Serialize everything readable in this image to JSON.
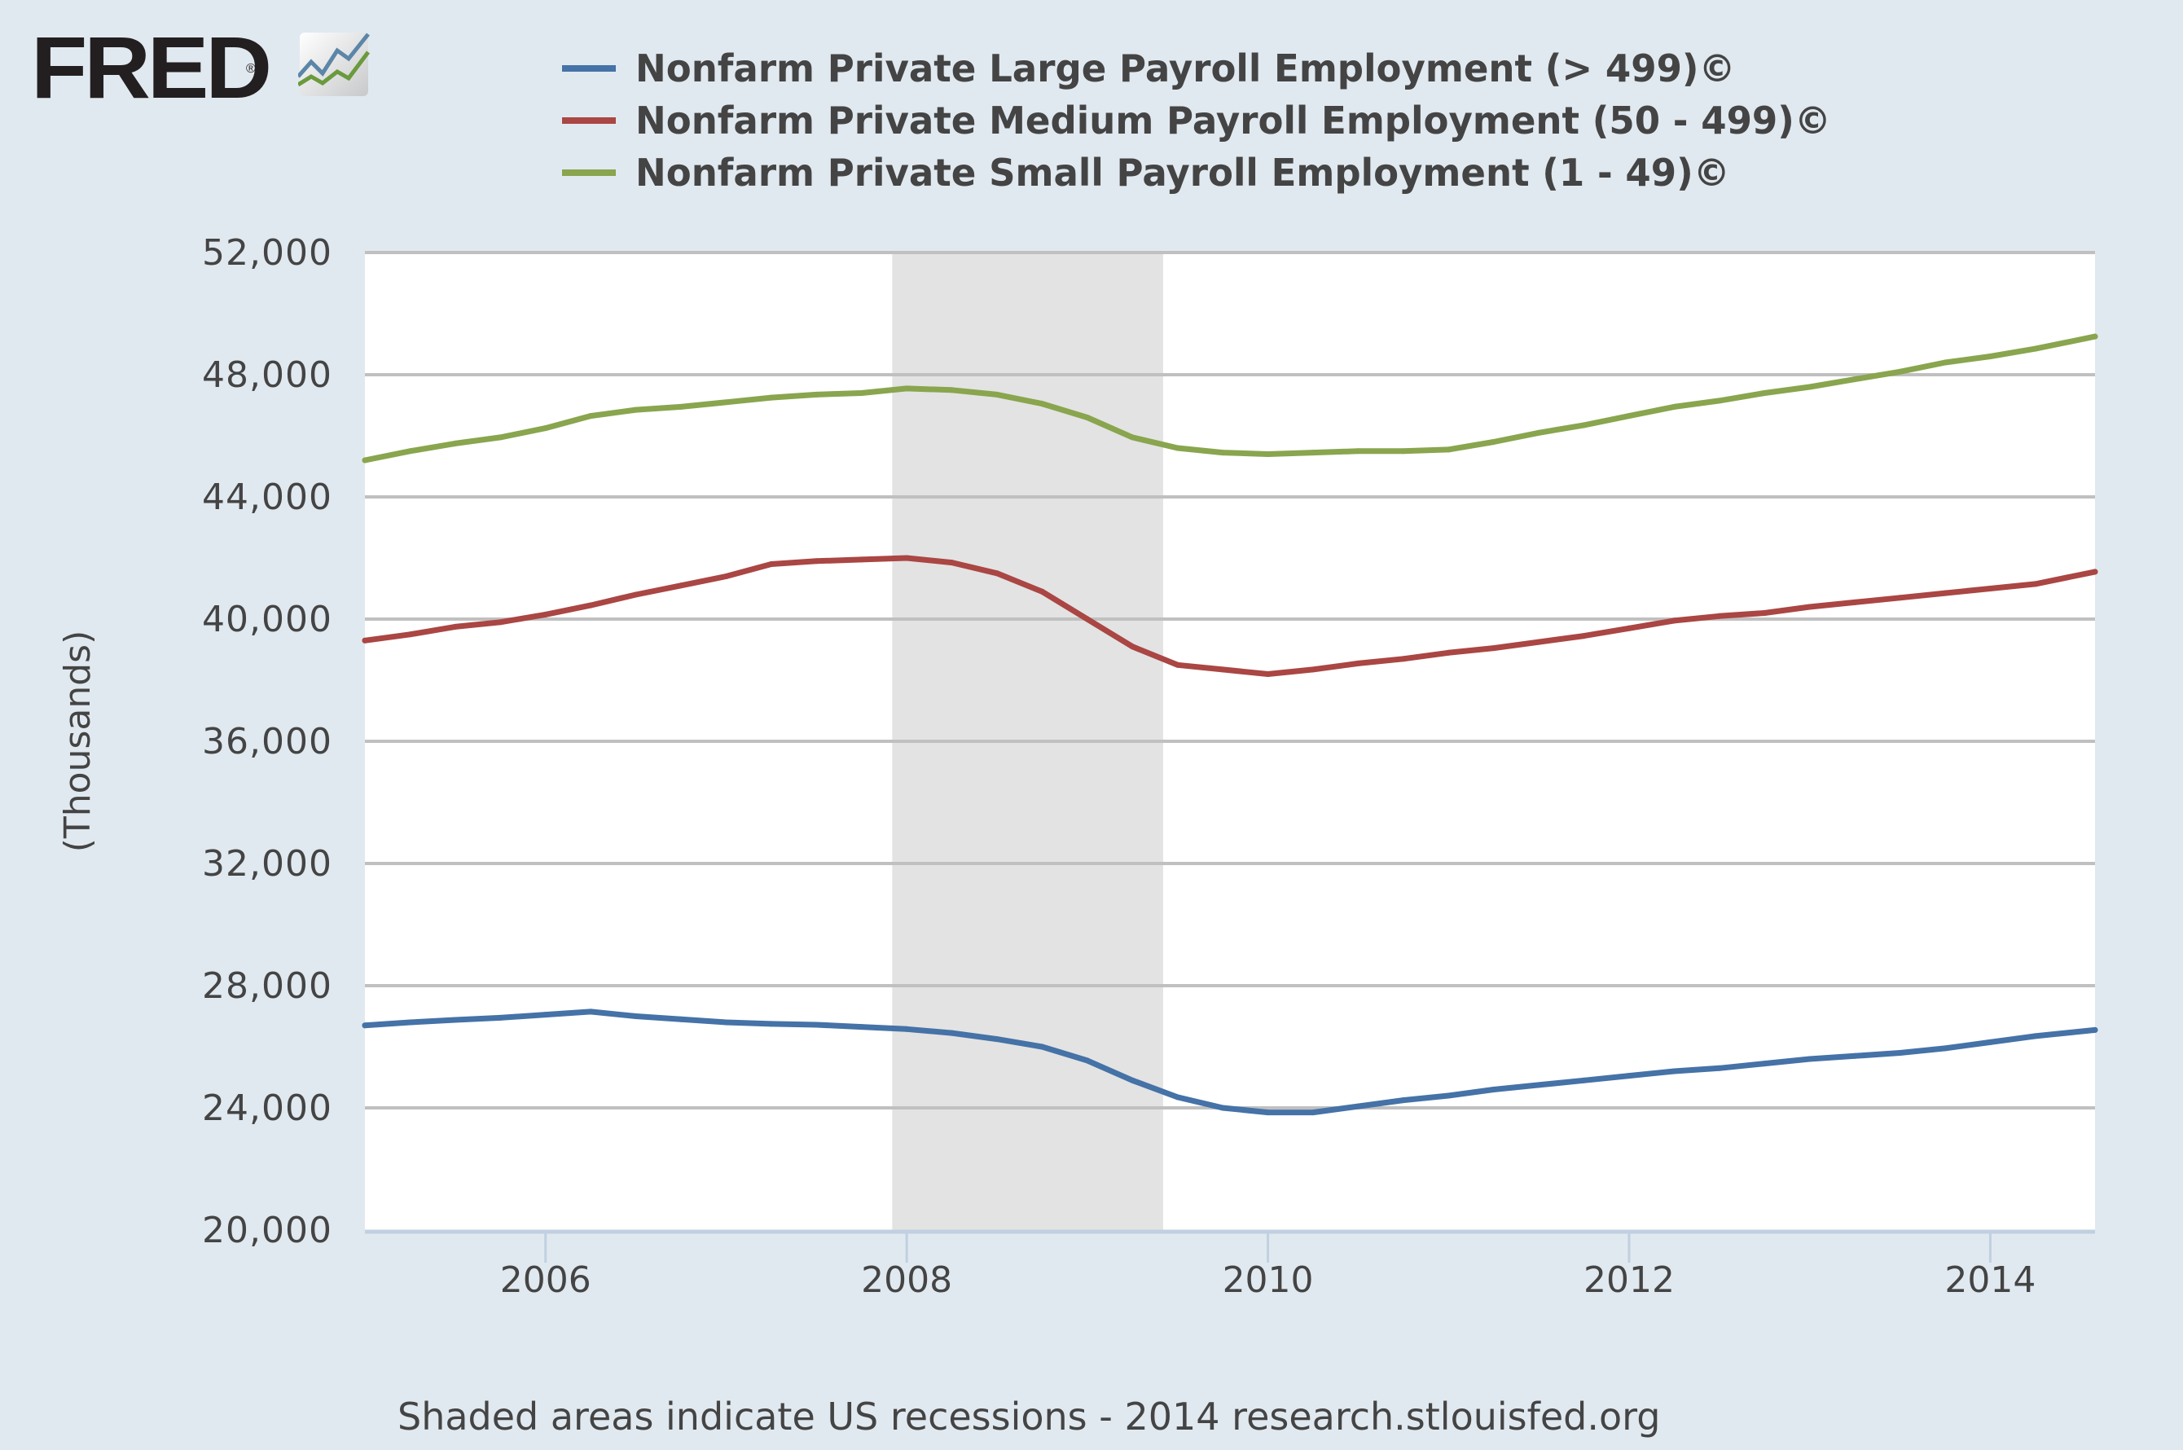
{
  "logo": {
    "text": "FRED",
    "registered": "®",
    "icon": "chart-line-icon"
  },
  "chart_data": {
    "type": "line",
    "title": "",
    "xlabel": "",
    "ylabel": "(Thousands)",
    "ylim": [
      20000,
      52000
    ],
    "xlim": [
      2005.0,
      2014.58
    ],
    "y_ticks": [
      20000,
      24000,
      28000,
      32000,
      36000,
      40000,
      44000,
      48000,
      52000
    ],
    "y_tick_labels": [
      "20,000",
      "24,000",
      "28,000",
      "32,000",
      "36,000",
      "40,000",
      "44,000",
      "48,000",
      "52,000"
    ],
    "x_ticks": [
      2006,
      2008,
      2010,
      2012,
      2014
    ],
    "x_tick_labels": [
      "2006",
      "2008",
      "2010",
      "2012",
      "2014"
    ],
    "grid": "horizontal",
    "legend_position": "top",
    "recessions": [
      {
        "start": 2007.92,
        "end": 2009.42,
        "label": "US recession"
      }
    ],
    "x": [
      2005.0,
      2005.25,
      2005.5,
      2005.75,
      2006.0,
      2006.25,
      2006.5,
      2006.75,
      2007.0,
      2007.25,
      2007.5,
      2007.75,
      2008.0,
      2008.25,
      2008.5,
      2008.75,
      2009.0,
      2009.25,
      2009.5,
      2009.75,
      2010.0,
      2010.25,
      2010.5,
      2010.75,
      2011.0,
      2011.25,
      2011.5,
      2011.75,
      2012.0,
      2012.25,
      2012.5,
      2012.75,
      2013.0,
      2013.25,
      2013.5,
      2013.75,
      2014.0,
      2014.25,
      2014.58
    ],
    "series": [
      {
        "name": "Nonfarm Private Large Payroll Employment (> 499)©",
        "color": "#4572a7",
        "values": [
          26700,
          26800,
          26880,
          26950,
          27050,
          27150,
          27000,
          26900,
          26800,
          26750,
          26720,
          26650,
          26580,
          26450,
          26250,
          26000,
          25550,
          24900,
          24350,
          24000,
          23850,
          23850,
          24050,
          24250,
          24400,
          24600,
          24750,
          24900,
          25050,
          25200,
          25300,
          25450,
          25600,
          25700,
          25800,
          25950,
          26150,
          26350,
          26550
        ]
      },
      {
        "name": "Nonfarm Private Medium Payroll Employment (50 - 499)©",
        "color": "#aa4643",
        "values": [
          39300,
          39500,
          39750,
          39900,
          40150,
          40450,
          40800,
          41100,
          41400,
          41800,
          41900,
          41950,
          42000,
          41850,
          41500,
          40900,
          40000,
          39100,
          38500,
          38350,
          38200,
          38350,
          38550,
          38700,
          38900,
          39050,
          39250,
          39450,
          39700,
          39950,
          40100,
          40200,
          40400,
          40550,
          40700,
          40850,
          41000,
          41150,
          41550
        ]
      },
      {
        "name": "Nonfarm Private Small Payroll Employment (1 - 49)©",
        "color": "#89a54e",
        "values": [
          45200,
          45500,
          45750,
          45950,
          46250,
          46650,
          46850,
          46950,
          47100,
          47250,
          47350,
          47400,
          47550,
          47500,
          47350,
          47050,
          46600,
          45950,
          45600,
          45450,
          45400,
          45450,
          45500,
          45500,
          45550,
          45800,
          46100,
          46350,
          46650,
          46950,
          47150,
          47400,
          47600,
          47850,
          48100,
          48400,
          48600,
          48850,
          49250
        ]
      }
    ]
  },
  "footer": {
    "text": "Shaded areas indicate US recessions - 2014 research.stlouisfed.org"
  }
}
